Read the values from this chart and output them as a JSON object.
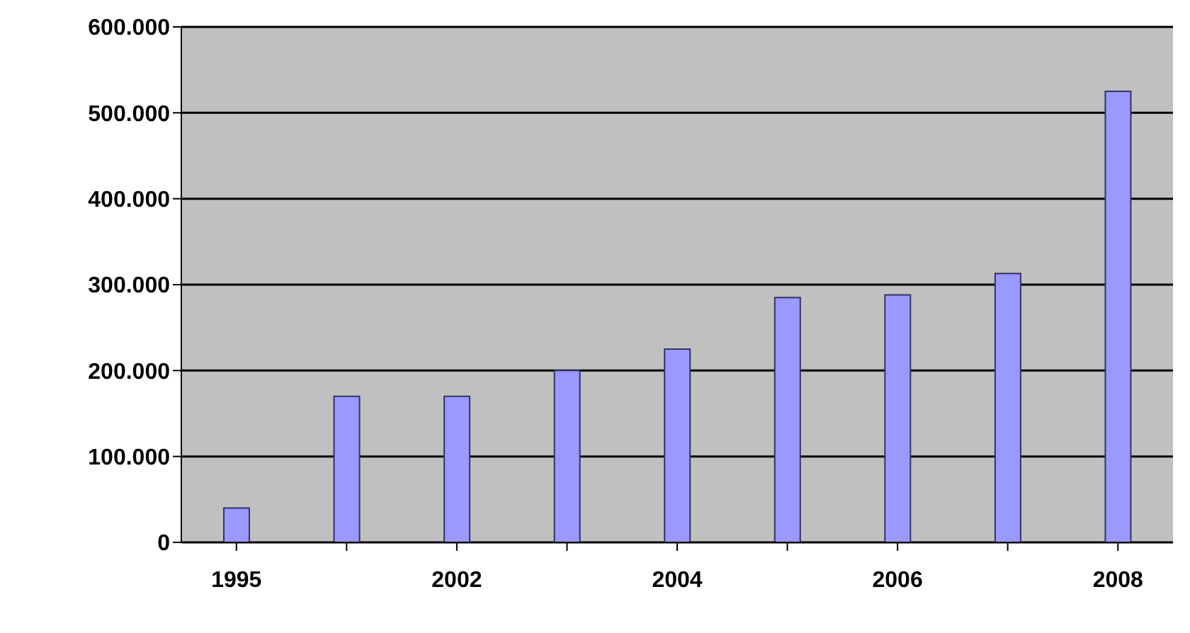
{
  "chart_data": {
    "type": "bar",
    "categories": [
      "1995",
      null,
      "2002",
      null,
      "2004",
      null,
      "2006",
      null,
      "2008"
    ],
    "values": [
      40000,
      170000,
      170000,
      200000,
      225000,
      285000,
      288000,
      313000,
      525000
    ],
    "color": "#9999ff",
    "ylim": [
      0,
      600000
    ],
    "yticks": [
      {
        "value": 0,
        "label": "0"
      },
      {
        "value": 100000,
        "label": "100.000"
      },
      {
        "value": 200000,
        "label": "200.000"
      },
      {
        "value": 300000,
        "label": "300.000"
      },
      {
        "value": 400000,
        "label": "400.000"
      },
      {
        "value": 500000,
        "label": "500.000"
      },
      {
        "value": 600000,
        "label": "600.000"
      }
    ],
    "grid": "y",
    "legend": false
  }
}
